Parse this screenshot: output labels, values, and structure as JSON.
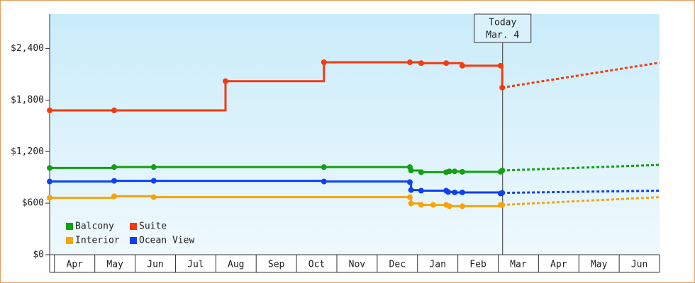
{
  "chart_data": {
    "type": "step-line",
    "xlim": [
      -0.12,
      15
    ],
    "ylim": [
      0,
      2800
    ],
    "yticks": [
      {
        "value": 0,
        "label": "$0"
      },
      {
        "value": 600,
        "label": "$600"
      },
      {
        "value": 1200,
        "label": "$1,200"
      },
      {
        "value": 1800,
        "label": "$1,800"
      },
      {
        "value": 2400,
        "label": "$2,400"
      }
    ],
    "xticks": [
      {
        "value": 0.5,
        "label": "Apr"
      },
      {
        "value": 1.5,
        "label": "May"
      },
      {
        "value": 2.5,
        "label": "Jun"
      },
      {
        "value": 3.5,
        "label": "Jul"
      },
      {
        "value": 4.5,
        "label": "Aug"
      },
      {
        "value": 5.5,
        "label": "Sep"
      },
      {
        "value": 6.5,
        "label": "Oct"
      },
      {
        "value": 7.5,
        "label": "Nov"
      },
      {
        "value": 8.5,
        "label": "Dec"
      },
      {
        "value": 9.5,
        "label": "Jan"
      },
      {
        "value": 10.5,
        "label": "Feb"
      },
      {
        "value": 11.5,
        "label": "Mar"
      },
      {
        "value": 12.5,
        "label": "Apr"
      },
      {
        "value": 13.5,
        "label": "May"
      },
      {
        "value": 14.5,
        "label": "Jun"
      }
    ],
    "today": {
      "x": 11.11,
      "label": [
        "Today",
        "Mar. 4"
      ]
    },
    "series": [
      {
        "name": "Balcony",
        "color": "#11a011",
        "x": [
          -0.12,
          1.48,
          2.46,
          6.68,
          8.81,
          8.84,
          9.09,
          9.71,
          9.79,
          9.92,
          10.11,
          11.06,
          11.1
        ],
        "values": [
          1010,
          1020,
          1020,
          1020,
          1020,
          980,
          960,
          960,
          970,
          970,
          965,
          965,
          980
        ],
        "forecast": {
          "x": [
            11.1,
            15
          ],
          "values": [
            980,
            1045
          ]
        }
      },
      {
        "name": "Suite",
        "color": "#f53a0f",
        "x": [
          -0.12,
          1.48,
          4.24,
          6.68,
          8.81,
          9.09,
          9.71,
          10.11,
          11.06,
          11.1
        ],
        "values": [
          1680,
          1680,
          2020,
          2240,
          2240,
          2230,
          2230,
          2200,
          2200,
          1945
        ],
        "forecast": {
          "x": [
            11.1,
            15
          ],
          "values": [
            1945,
            2235
          ]
        }
      },
      {
        "name": "Interior",
        "color": "#f5a50a",
        "x": [
          -0.12,
          1.48,
          2.46,
          8.81,
          8.84,
          9.09,
          9.39,
          9.71,
          9.79,
          10.11,
          11.06,
          11.1
        ],
        "values": [
          662,
          680,
          670,
          670,
          596,
          580,
          580,
          580,
          565,
          565,
          580,
          580
        ],
        "forecast": {
          "x": [
            11.1,
            15
          ],
          "values": [
            580,
            670
          ]
        }
      },
      {
        "name": "Ocean View",
        "color": "#1040f0",
        "x": [
          -0.12,
          1.48,
          2.46,
          6.68,
          8.81,
          8.84,
          9.09,
          9.71,
          9.76,
          9.92,
          10.11,
          11.06,
          11.1
        ],
        "values": [
          852,
          860,
          860,
          852,
          845,
          753,
          745,
          745,
          730,
          725,
          725,
          712,
          720
        ],
        "forecast": {
          "x": [
            11.1,
            15
          ],
          "values": [
            720,
            745
          ]
        }
      }
    ]
  }
}
